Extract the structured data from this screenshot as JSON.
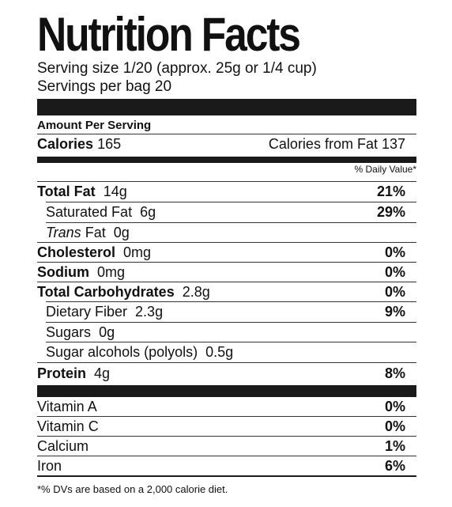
{
  "title": "Nutrition Facts",
  "serving_size": "Serving size 1/20 (approx. 25g or 1/4 cup)",
  "servings_per": "Servings per bag 20",
  "amount_per_serving": "Amount Per Serving",
  "calories": {
    "label": "Calories",
    "value": "165",
    "from_fat": "Calories from Fat 137"
  },
  "daily_value_header": "% Daily Value*",
  "nutrients": {
    "total_fat": {
      "label": "Total Fat",
      "amount": "14g",
      "dv": "21%"
    },
    "saturated_fat": {
      "label": "Saturated Fat",
      "amount": "6g",
      "dv": "29%"
    },
    "trans_fat": {
      "label_italic": "Trans",
      "label": "Fat",
      "amount": "0g"
    },
    "cholesterol": {
      "label": "Cholesterol",
      "amount": "0mg",
      "dv": "0%"
    },
    "sodium": {
      "label": "Sodium",
      "amount": "0mg",
      "dv": "0%"
    },
    "total_carbs": {
      "label": "Total Carbohydrates",
      "amount": "2.8g",
      "dv": "0%"
    },
    "dietary_fiber": {
      "label": "Dietary Fiber",
      "amount": "2.3g",
      "dv": "9%"
    },
    "sugars": {
      "label": "Sugars",
      "amount": "0g"
    },
    "sugar_alcohols": {
      "label": "Sugar alcohols (polyols)",
      "amount": "0.5g"
    },
    "protein": {
      "label": "Protein",
      "amount": "4g",
      "dv": "8%"
    }
  },
  "vitamins": {
    "vitamin_a": {
      "label": "Vitamin A",
      "dv": "0%"
    },
    "vitamin_c": {
      "label": "Vitamin C",
      "dv": "0%"
    },
    "calcium": {
      "label": "Calcium",
      "dv": "1%"
    },
    "iron": {
      "label": "Iron",
      "dv": "6%"
    }
  },
  "footnote": "*% DVs are based on a 2,000 calorie diet."
}
